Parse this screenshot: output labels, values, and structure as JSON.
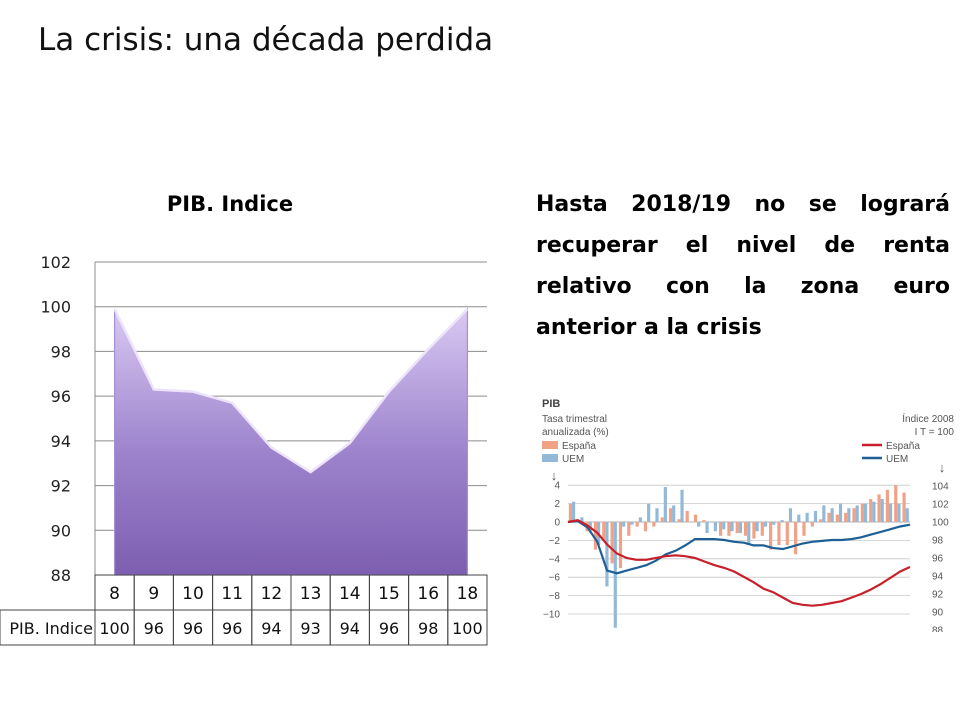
{
  "slide": {
    "title": "La crisis: una década perdida",
    "text": "Hasta 2018/19 no se logrará recuperar el nivel de renta relativo con la zona euro anterior a la crisis"
  },
  "chart_data": [
    {
      "type": "area",
      "title": "PIB. Indice",
      "categories": [
        "8",
        "9",
        "10",
        "11",
        "12",
        "13",
        "14",
        "15",
        "16",
        "18"
      ],
      "series": [
        {
          "name": "PIB. Indice",
          "values": [
            99.9,
            96.3,
            96.2,
            95.7,
            93.7,
            92.6,
            93.9,
            96.2,
            98.1,
            99.9
          ]
        }
      ],
      "ylim": [
        88,
        102
      ],
      "yticks": [
        88,
        90,
        92,
        94,
        96,
        98,
        100,
        102
      ],
      "table_label": "PIB. Indice",
      "table_values": [
        "100",
        "96",
        "96",
        "96",
        "94",
        "93",
        "94",
        "96",
        "98",
        "100"
      ],
      "grid": true,
      "colors": {
        "fill_top": "#d9c9f2",
        "fill_bottom": "#7d5eb0",
        "edge": "#a48fd0"
      }
    },
    {
      "type": "bar",
      "title": "PIB",
      "left_axis_title": [
        "Tasa trimestral",
        "anualizada (%)"
      ],
      "right_axis_title": [
        "Índice 2008",
        "I T = 100"
      ],
      "legend_bars": [
        "España",
        "UEM"
      ],
      "legend_lines": [
        "España",
        "UEM"
      ],
      "yticks_left": [
        "4",
        "2",
        "0",
        "−2",
        "−4",
        "−6",
        "−8",
        "−10"
      ],
      "yticks_right": [
        "104",
        "102",
        "100",
        "98",
        "96",
        "94",
        "92",
        "90",
        "88"
      ],
      "ylim_left": [
        -12,
        4.8
      ],
      "bars_espana": [
        2.0,
        0.2,
        -1.0,
        -3.0,
        -2.0,
        -4.5,
        -5.0,
        -1.5,
        -0.5,
        -1.0,
        -0.5,
        0.5,
        1.5,
        0.3,
        1.2,
        0.8,
        0.2,
        0.0,
        -1.5,
        -1.5,
        -1.2,
        -1.5,
        -1.8,
        -1.5,
        -3.0,
        -2.5,
        -2.5,
        -3.5,
        -1.5,
        -0.5,
        0.3,
        1.0,
        0.8,
        1.0,
        1.5,
        2.0,
        2.5,
        3.0,
        3.5,
        4.0,
        3.2
      ],
      "bars_uem": [
        2.2,
        0.5,
        -1.0,
        -2.5,
        -7.0,
        -11.5,
        -0.5,
        -0.3,
        0.5,
        2.0,
        1.5,
        3.8,
        1.8,
        3.5,
        0.0,
        -0.5,
        -1.2,
        -1.0,
        -0.8,
        -1.0,
        -1.2,
        -2.5,
        -1.0,
        -0.5,
        -0.3,
        0.2,
        1.5,
        0.8,
        1.0,
        1.2,
        1.8,
        1.5,
        2.0,
        1.5,
        1.8,
        2.0,
        2.2,
        2.5,
        2.0,
        2.0,
        1.5
      ],
      "line_espana": [
        100.0,
        100.2,
        99.6,
        98.8,
        97.5,
        96.5,
        96.0,
        95.8,
        95.8,
        96.0,
        96.2,
        96.3,
        96.2,
        96.0,
        95.6,
        95.2,
        94.9,
        94.5,
        93.9,
        93.3,
        92.6,
        92.2,
        91.6,
        91.0,
        90.8,
        90.7,
        90.8,
        91.0,
        91.2,
        91.6,
        92.0,
        92.5,
        93.1,
        93.8,
        94.5,
        95.0
      ],
      "line_uem": [
        100.0,
        100.1,
        99.4,
        97.8,
        94.6,
        94.3,
        94.6,
        94.9,
        95.2,
        95.7,
        96.4,
        96.8,
        97.4,
        98.1,
        98.1,
        98.1,
        98.0,
        97.8,
        97.7,
        97.4,
        97.4,
        97.1,
        97.0,
        97.3,
        97.6,
        97.8,
        97.9,
        98.0,
        98.0,
        98.1,
        98.3,
        98.6,
        98.9,
        99.2,
        99.5,
        99.7
      ],
      "colors": {
        "bar_espana": "#f0a287",
        "bar_uem": "#92b9d8",
        "line_espana": "#c8202b",
        "line_uem": "#1f5f95",
        "grid": "#c8c8c8"
      }
    }
  ]
}
